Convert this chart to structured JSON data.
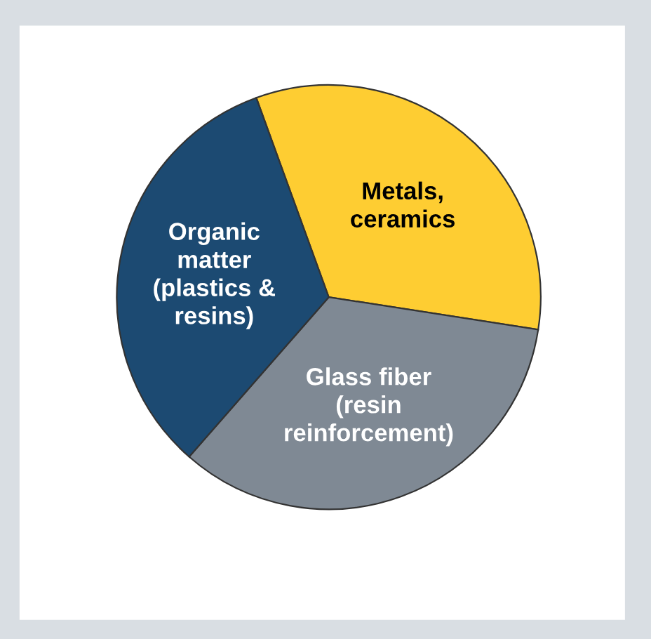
{
  "chart_data": {
    "type": "pie",
    "categories": [
      "Metals,\nceramics",
      "Glass fiber\n(resin\nreinforcement)",
      "Organic\nmatter\n(plastics &\nresins)"
    ],
    "values": [
      33,
      34,
      33
    ],
    "colors": [
      "#fecd32",
      "#7f8994",
      "#1c4a72"
    ]
  }
}
